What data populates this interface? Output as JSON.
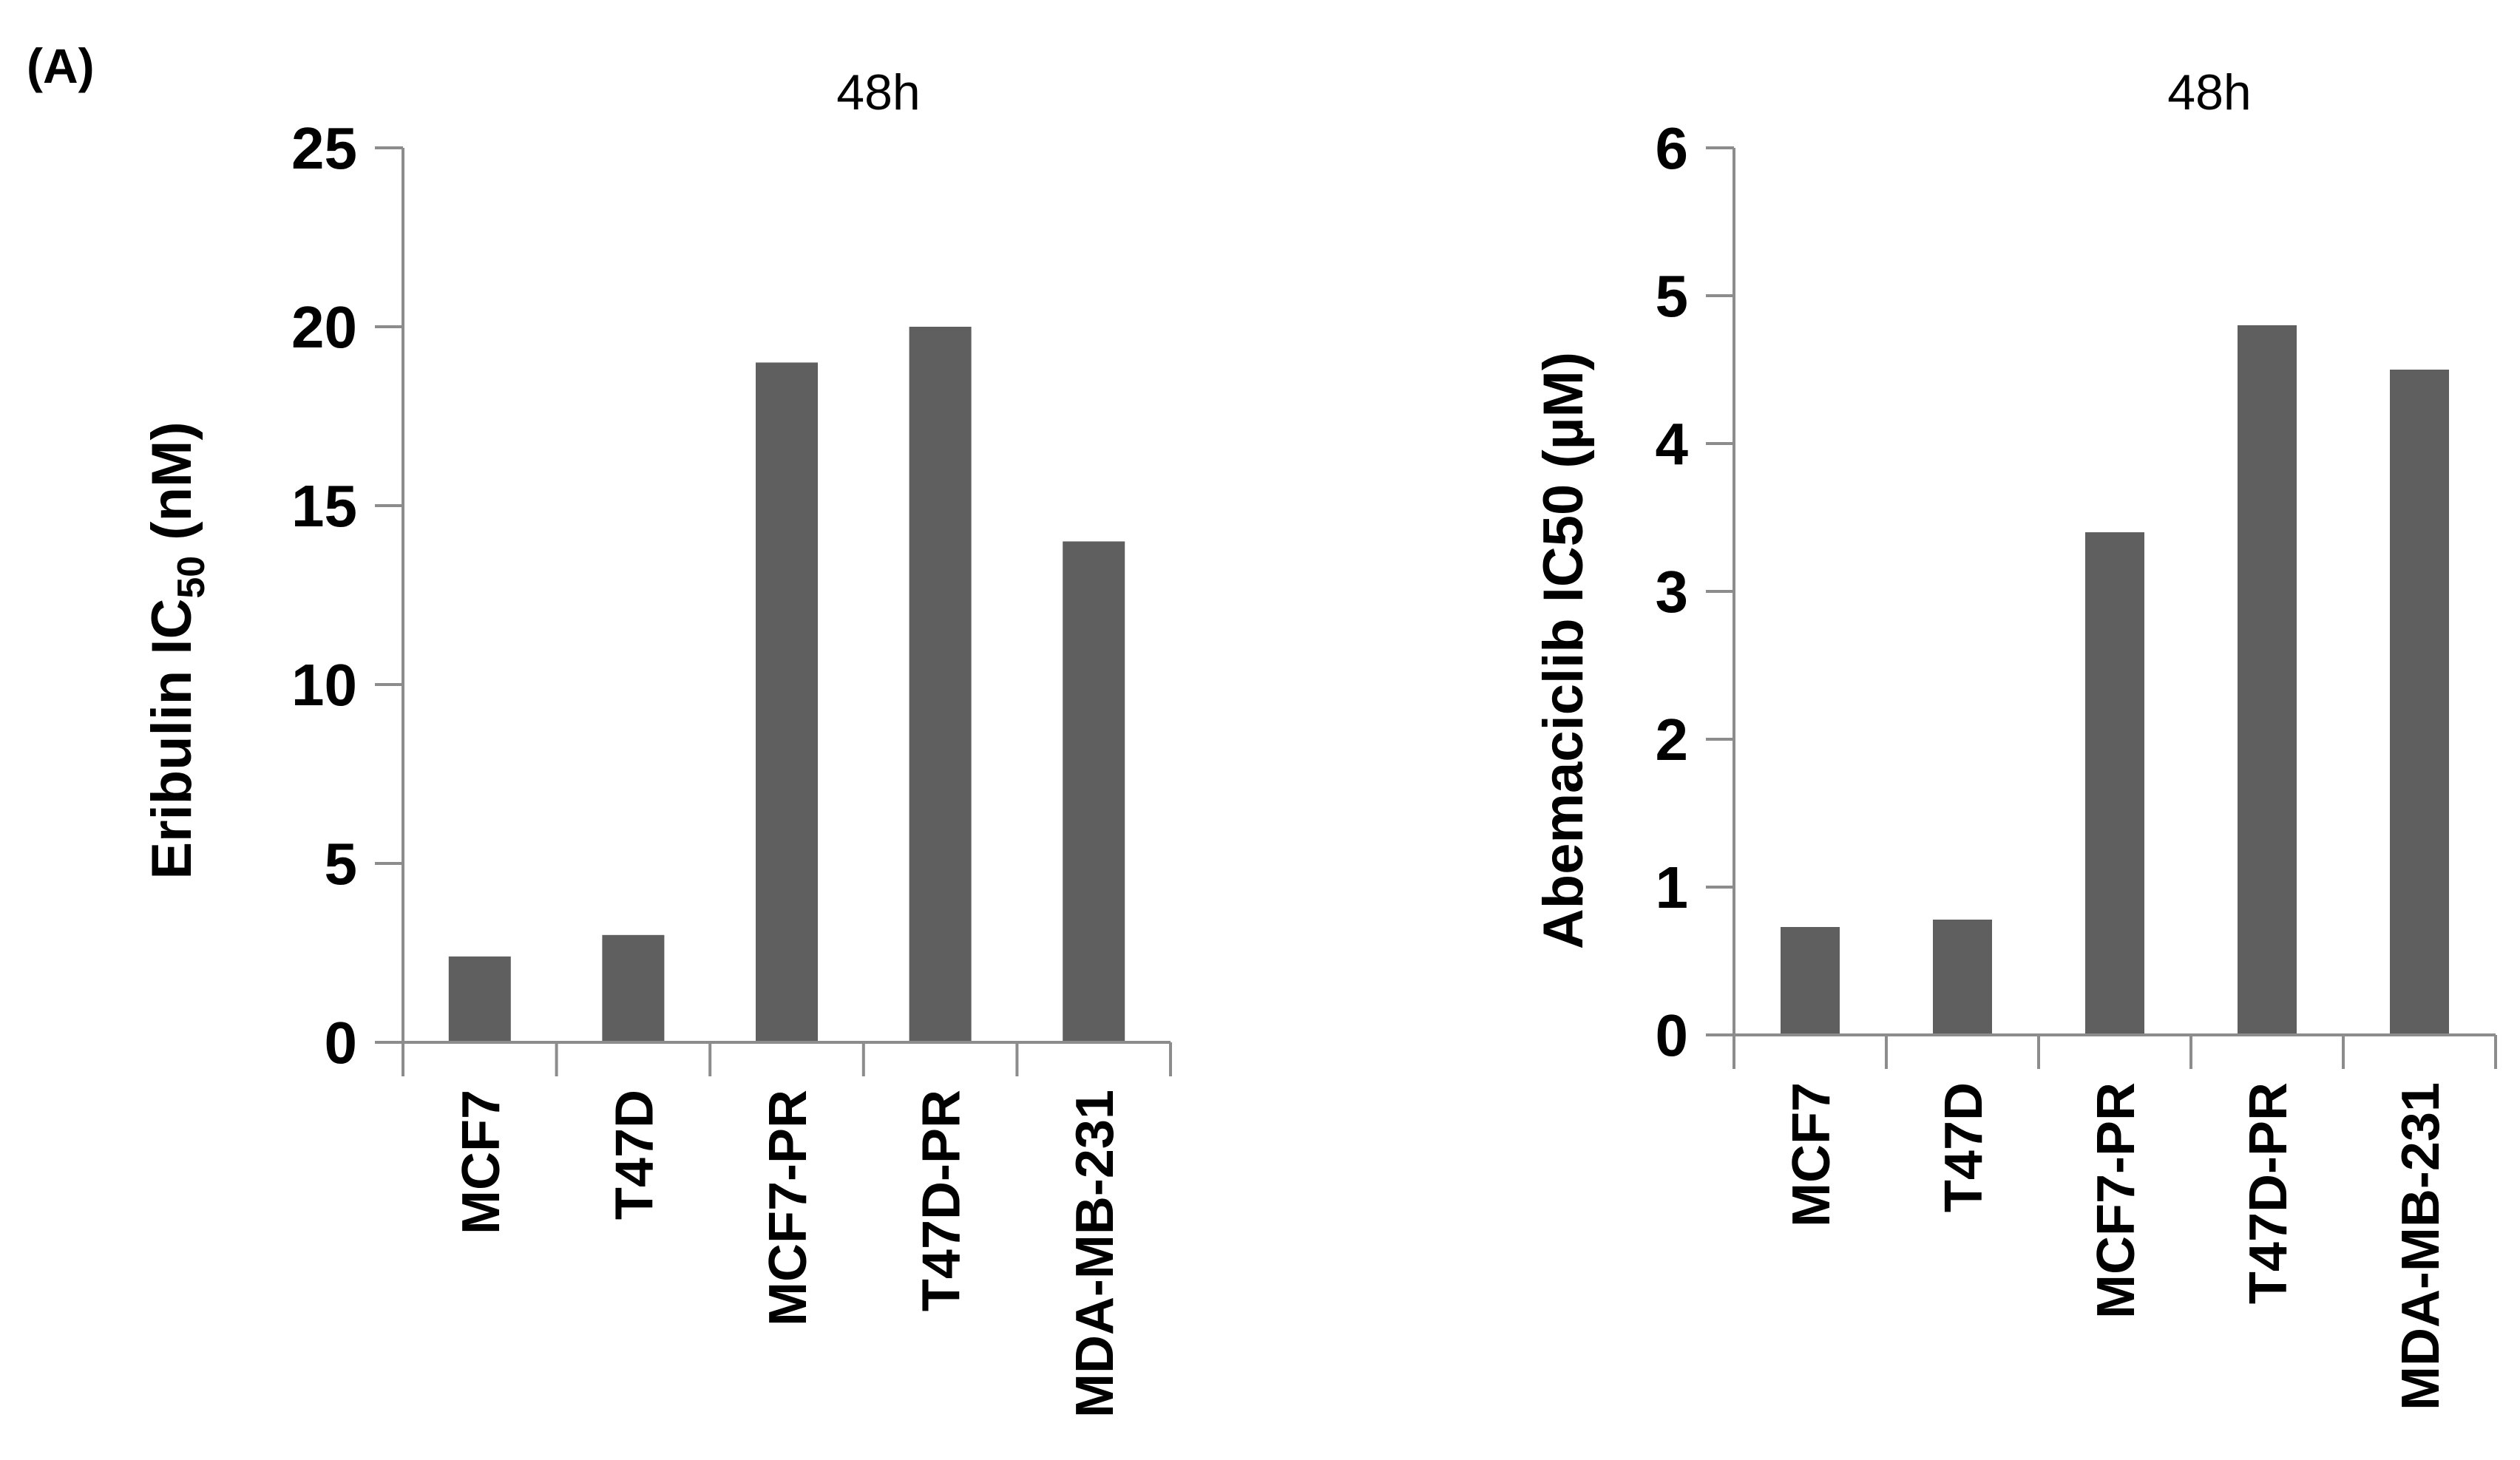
{
  "figure": {
    "panel_label": "(A)"
  },
  "chart_data": [
    {
      "type": "bar",
      "title": "48h",
      "categories": [
        "MCF7",
        "T47D",
        "MCF7-PR",
        "T47D-PR",
        "MDA-MB-231"
      ],
      "values": [
        2.4,
        3.0,
        19.0,
        20.0,
        14.0
      ],
      "ylabel_parts": {
        "main": "Eribulin IC",
        "sub": "50",
        "unit": " (nM)"
      },
      "ylim": [
        0,
        25
      ],
      "yticks": [
        0,
        5,
        10,
        15,
        20,
        25
      ],
      "grid": false,
      "colors": {
        "bar": "#5f5f5f",
        "axis": "#8c8c8c"
      }
    },
    {
      "type": "bar",
      "title": "48h",
      "categories": [
        "MCF7",
        "T47D",
        "MCF7-PR",
        "T47D-PR",
        "MDA-MB-231"
      ],
      "values": [
        0.73,
        0.78,
        3.4,
        4.8,
        4.5
      ],
      "ylabel": "Abemaciclib IC50 (µM)",
      "ylim": [
        0,
        6
      ],
      "yticks": [
        0,
        1,
        2,
        3,
        4,
        5,
        6
      ],
      "grid": false,
      "colors": {
        "bar": "#5f5f5f",
        "axis": "#8c8c8c"
      }
    }
  ]
}
